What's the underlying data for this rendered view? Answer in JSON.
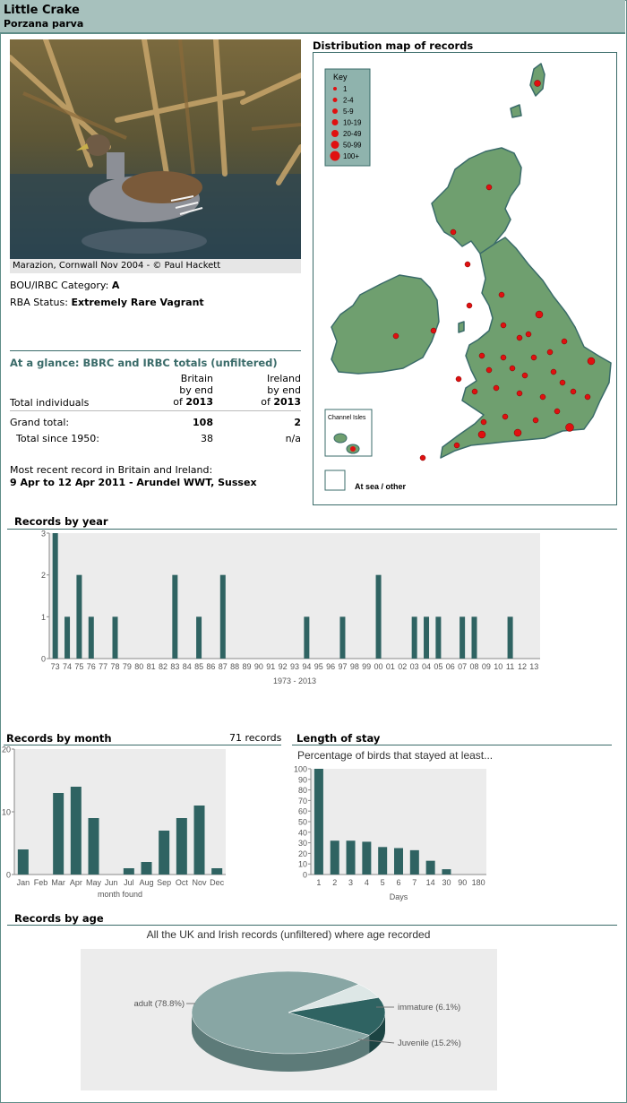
{
  "header": {
    "common_name": "Little Crake",
    "scientific_name": "Porzana parva"
  },
  "photo": {
    "caption": "Marazion, Cornwall Nov 2004 - © Paul Hackett"
  },
  "status": {
    "bou_label": "BOU/IRBC Category:",
    "bou_value": "A",
    "rba_label": "RBA Status:",
    "rba_value": "Extremely Rare Vagrant"
  },
  "glance": {
    "title": "At a glance: BBRC and IRBC totals (unfiltered)",
    "col_britain": [
      "Britain",
      "by end",
      "of"
    ],
    "col_britain_year": "2013",
    "col_ireland": [
      "Ireland",
      "by end",
      "of"
    ],
    "col_ireland_year": "2013",
    "row_total_individuals": "Total individuals",
    "row_grand_total": "Grand total:",
    "grand_britain": "108",
    "grand_ireland": "2",
    "row_since_1950": "Total since 1950:",
    "since_britain": "38",
    "since_ireland": "n/a",
    "recent_label": "Most recent record in Britain and Ireland:",
    "recent_value": "9 Apr to 12 Apr 2011 - Arundel WWT, Sussex"
  },
  "map": {
    "title": "Distribution map of records",
    "key_title": "Key",
    "key_items": [
      "1",
      "2-4",
      "5-9",
      "10-19",
      "20-49",
      "50-99",
      "100+"
    ],
    "channel_isles": "Channel Isles",
    "at_sea": "At sea / other",
    "colors": {
      "land": "#6f9f6f",
      "dot": "#e01010",
      "border": "#3a6b69",
      "key_bg": "#8fb3ad"
    }
  },
  "sections": {
    "by_year": "Records by year",
    "by_month": "Records by month",
    "month_count": "71 records",
    "stay": "Length of stay",
    "by_age": "Records by age"
  },
  "colors": {
    "bar": "#2f6362",
    "plot_bg": "#ececec",
    "rule": "#3a6b69"
  },
  "chart_data": [
    {
      "type": "bar",
      "categories": [
        "73",
        "74",
        "75",
        "76",
        "77",
        "78",
        "79",
        "80",
        "81",
        "82",
        "83",
        "84",
        "85",
        "86",
        "87",
        "88",
        "89",
        "90",
        "91",
        "92",
        "93",
        "94",
        "95",
        "96",
        "97",
        "98",
        "99",
        "00",
        "01",
        "02",
        "03",
        "04",
        "05",
        "06",
        "07",
        "08",
        "09",
        "10",
        "11",
        "12",
        "13"
      ],
      "values": [
        3,
        1,
        2,
        1,
        0,
        1,
        0,
        0,
        0,
        0,
        2,
        0,
        1,
        0,
        2,
        0,
        0,
        0,
        0,
        0,
        0,
        1,
        0,
        0,
        1,
        0,
        0,
        2,
        0,
        0,
        1,
        1,
        1,
        0,
        1,
        1,
        0,
        0,
        1,
        0,
        0
      ],
      "xlabel": "1973 - 2013",
      "ylim": [
        0,
        3
      ],
      "yticks": [
        "0",
        "1",
        "2",
        "3"
      ]
    },
    {
      "type": "bar",
      "categories": [
        "Jan",
        "Feb",
        "Mar",
        "Apr",
        "May",
        "Jun",
        "Jul",
        "Aug",
        "Sep",
        "Oct",
        "Nov",
        "Dec"
      ],
      "values": [
        4,
        0,
        13,
        14,
        9,
        0,
        1,
        2,
        7,
        9,
        11,
        1
      ],
      "xlabel": "month found",
      "ylim": [
        0,
        20
      ],
      "yticks": [
        "0",
        "10",
        "20"
      ]
    },
    {
      "type": "bar",
      "title": "Percentage of birds that stayed at least...",
      "categories": [
        "1",
        "2",
        "3",
        "4",
        "5",
        "6",
        "7",
        "14",
        "30",
        "90",
        "180"
      ],
      "values": [
        100,
        32,
        32,
        31,
        26,
        25,
        23,
        13,
        5,
        0,
        0
      ],
      "xlabel": "Days",
      "ylim": [
        0,
        100
      ],
      "yticks": [
        "0",
        "10",
        "20",
        "30",
        "40",
        "50",
        "60",
        "70",
        "80",
        "90",
        "100"
      ]
    },
    {
      "type": "pie",
      "title": "All the UK and Irish records (unfiltered) where age recorded",
      "labels": [
        "adult (78.8%)",
        "immature (6.1%)",
        "Juvenile (15.2%)"
      ],
      "values": [
        78.8,
        6.1,
        15.2
      ],
      "colors": [
        "#88a6a4",
        "#dde7e6",
        "#2f6362"
      ]
    }
  ]
}
